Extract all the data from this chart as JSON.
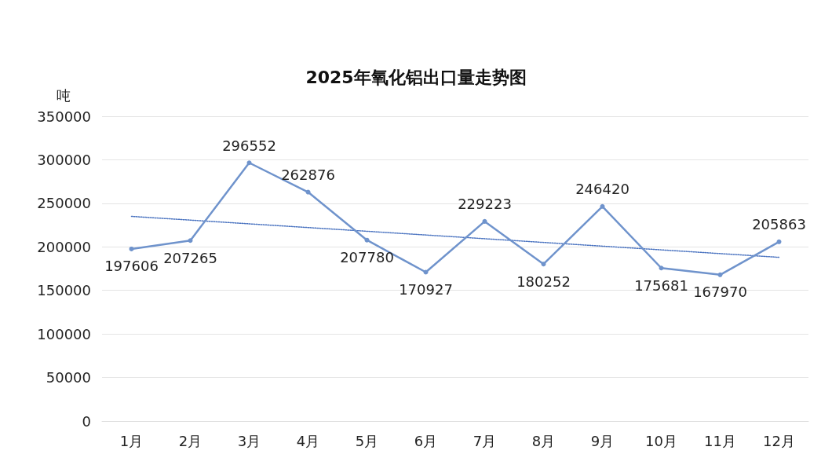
{
  "chart_data": {
    "type": "line",
    "title": "2025年氧化铝出口量走势图",
    "ylabel": "吨",
    "categories": [
      "1月",
      "2月",
      "3月",
      "4月",
      "5月",
      "6月",
      "7月",
      "8月",
      "9月",
      "10月",
      "11月",
      "12月"
    ],
    "series": [
      {
        "color": "#6f93cc",
        "values": [
          197606,
          207265,
          296552,
          262876,
          207780,
          170927,
          229223,
          180252,
          246420,
          175681,
          167970,
          205863
        ],
        "value_labels": [
          "197606",
          "207265",
          "296552",
          "262876",
          "207780",
          "170927",
          "229223",
          "180252",
          "246420",
          "175681",
          "167970",
          "205863"
        ],
        "marker": "circle",
        "line_style": "solid"
      },
      {
        "type": "line",
        "color": "#4a73c0",
        "x": [
          "1月",
          "12月"
        ],
        "values": [
          235000,
          188000
        ],
        "marker": "none",
        "line_style": "dotted"
      }
    ],
    "ylim": [
      0,
      350000
    ],
    "yticks": [
      0,
      50000,
      100000,
      150000,
      200000,
      250000,
      300000,
      350000
    ],
    "grid": "y"
  }
}
